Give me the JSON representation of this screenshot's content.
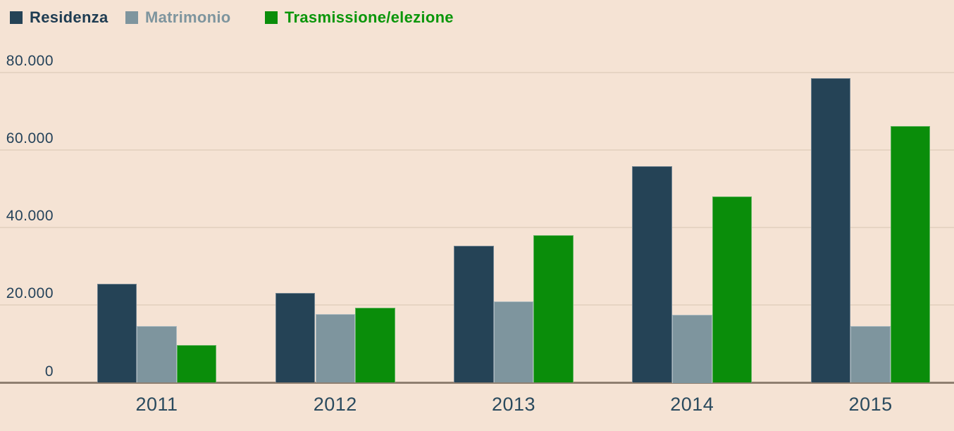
{
  "chart_data": {
    "type": "bar",
    "title": "",
    "xlabel": "",
    "ylabel": "",
    "categories": [
      "2011",
      "2012",
      "2013",
      "2014",
      "2015"
    ],
    "series": [
      {
        "name": "Residenza",
        "color": "#254356",
        "label_color": "#1e3c52",
        "values": [
          25500,
          23200,
          35300,
          55800,
          78500
        ]
      },
      {
        "name": "Matrimonio",
        "color": "#7e959e",
        "label_color": "#7e959e",
        "values": [
          14700,
          17700,
          20900,
          17500,
          14600
        ]
      },
      {
        "name": "Trasmissione/elezione",
        "color": "#0a8d0a",
        "label_color": "#0a960a",
        "values": [
          9800,
          19300,
          38000,
          48000,
          66200
        ]
      }
    ],
    "ylim": [
      0,
      80000
    ],
    "yticks": [
      {
        "value": 0,
        "label": "0"
      },
      {
        "value": 20000,
        "label": "20.000"
      },
      {
        "value": 40000,
        "label": "40.000"
      },
      {
        "value": 60000,
        "label": "60.000"
      },
      {
        "value": 80000,
        "label": "80.000"
      }
    ],
    "grid": "horizontal",
    "legend_position": "top"
  },
  "colors": {
    "background": "#f5e3d4",
    "gridline": "#e6d4c3",
    "axis_line": "#8f7f70",
    "tick_label": "#24425a",
    "year_label": "#2a4a5e"
  }
}
